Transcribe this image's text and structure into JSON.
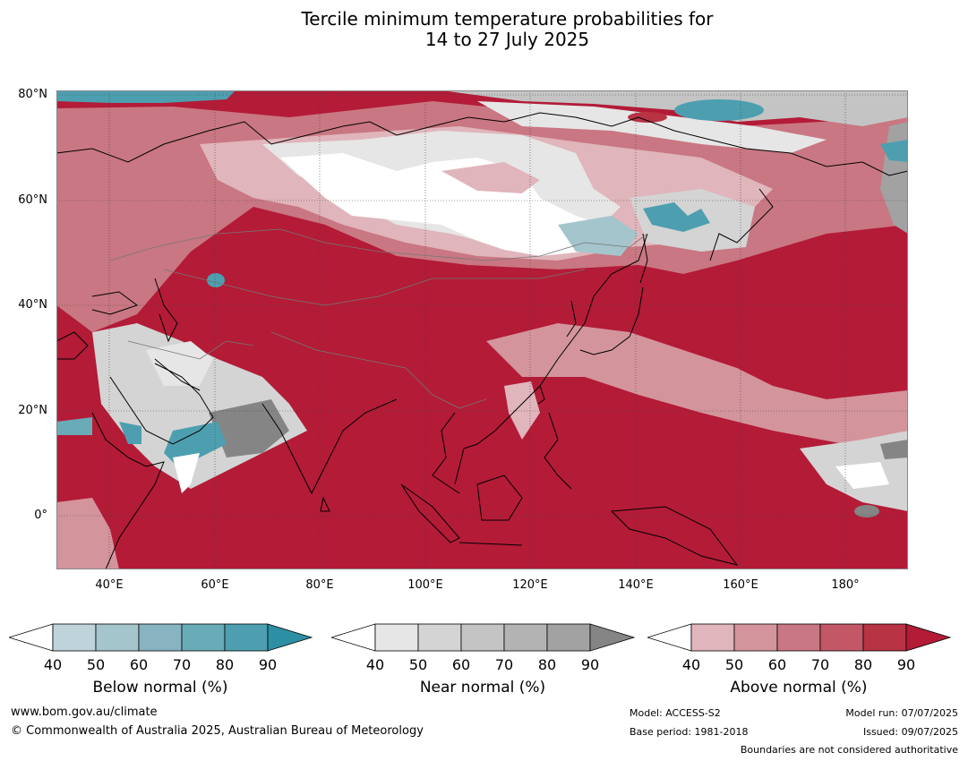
{
  "title": {
    "line1": "Tercile minimum temperature probabilities for",
    "line2": "14 to 27 July 2025"
  },
  "map": {
    "region": "Asia and Western Pacific",
    "lat_labels": [
      "80°N",
      "60°N",
      "40°N",
      "20°N",
      "0°"
    ],
    "lon_labels": [
      "40°E",
      "60°E",
      "80°E",
      "100°E",
      "120°E",
      "140°E",
      "160°E",
      "180°"
    ],
    "colors": {
      "above_normal_dominant": "#b31b37",
      "ocean_fill": "#b31b37"
    }
  },
  "colorbars": [
    {
      "id": "below",
      "title": "Below normal (%)",
      "labels": [
        "40",
        "50",
        "60",
        "70",
        "80",
        "90"
      ],
      "colors": [
        "#ffffff",
        "#bfd3da",
        "#a5c5cc",
        "#87b4c0",
        "#6aabb8",
        "#4d9fb0",
        "#2d8fa3"
      ]
    },
    {
      "id": "near",
      "title": "Near normal (%)",
      "labels": [
        "40",
        "50",
        "60",
        "70",
        "80",
        "90"
      ],
      "colors": [
        "#ffffff",
        "#e6e6e6",
        "#d4d4d4",
        "#c4c4c4",
        "#b3b3b3",
        "#a2a2a2",
        "#858585"
      ]
    },
    {
      "id": "above",
      "title": "Above normal (%)",
      "labels": [
        "40",
        "50",
        "60",
        "70",
        "80",
        "90"
      ],
      "colors": [
        "#ffffff",
        "#e0b5bb",
        "#d4949c",
        "#c97782",
        "#c25866",
        "#b83344",
        "#b31b37"
      ]
    }
  ],
  "footer": {
    "website": "www.bom.gov.au/climate",
    "copyright": "© Commonwealth of Australia 2025, Australian Bureau of Meteorology",
    "model": "Model: ACCESS-S2",
    "base_period": "Base period: 1981-2018",
    "model_run": "Model run: 07/07/2025",
    "issued": "Issued: 09/07/2025",
    "disclaimer": "Boundaries are not considered authoritative"
  }
}
